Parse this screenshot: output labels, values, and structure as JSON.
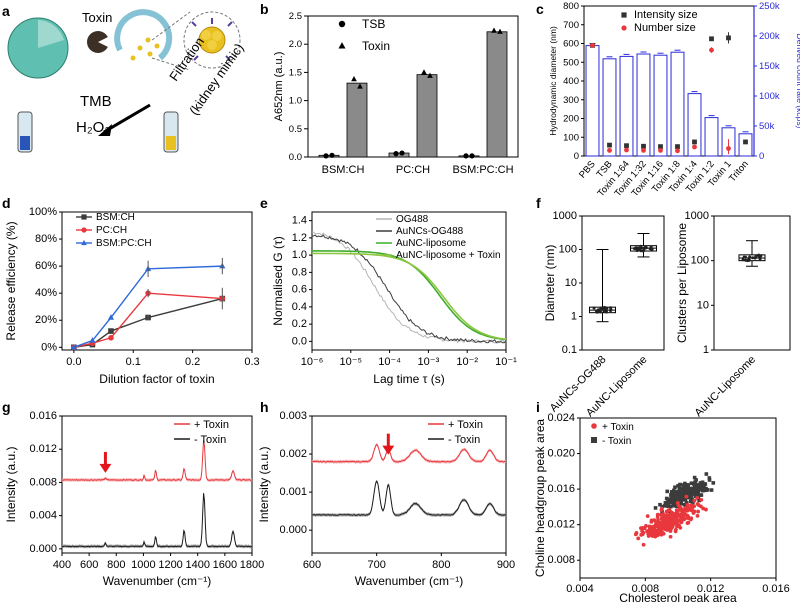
{
  "panels": {
    "a": {
      "letter": "a",
      "toxin_label": "Toxin",
      "filtration_line1": "Filtration",
      "filtration_line2": "(kidney mimic)",
      "tmb_label": "TMB",
      "h2o2_label": "H₂O₂",
      "colors": {
        "liposome": "#5fbfb0",
        "gold": "#e8c020",
        "cup": "#b0d8e8"
      }
    },
    "b": {
      "letter": "b"
    },
    "c": {
      "letter": "c"
    },
    "d": {
      "letter": "d"
    },
    "e": {
      "letter": "e"
    },
    "f": {
      "letter": "f"
    },
    "g": {
      "letter": "g"
    },
    "h": {
      "letter": "h"
    },
    "i": {
      "letter": "i"
    }
  },
  "chart_data": [
    {
      "panel": "b",
      "type": "bar",
      "ylabel": "A652nm (a.u.)",
      "ylim": [
        0,
        2.5
      ],
      "yticks": [
        "0.0",
        "0.5",
        "1.0",
        "1.5",
        "2.0",
        "2.5"
      ],
      "categories": [
        "BSM:CH",
        "PC:CH",
        "BSM:PC:CH"
      ],
      "series": [
        {
          "name": "TSB",
          "marker": "circle",
          "values": [
            0.03,
            0.07,
            0.02
          ],
          "points": [
            [
              0.02,
              0.03
            ],
            [
              0.06,
              0.07
            ],
            [
              0.02,
              0.02
            ]
          ]
        },
        {
          "name": "Toxin",
          "marker": "triangle",
          "values": [
            1.31,
            1.46,
            2.22
          ],
          "points": [
            [
              1.38,
              1.25
            ],
            [
              1.5,
              1.44
            ],
            [
              2.24,
              2.22
            ]
          ]
        }
      ],
      "colors": {
        "bar": "#8a8a8a"
      }
    },
    {
      "panel": "c",
      "type": "bar",
      "ylabel": "Hydrodynamic diameter (nm)",
      "y2label": "Derived count rate (kcps)",
      "ylim": [
        0,
        800
      ],
      "yticks": [
        "0",
        "100",
        "200",
        "300",
        "400",
        "500",
        "600",
        "700",
        "800"
      ],
      "y2lim": [
        0,
        250000
      ],
      "y2ticks": [
        "0",
        "50k",
        "100k",
        "150k",
        "200k",
        "250k"
      ],
      "categories": [
        "PBS",
        "TSB",
        "Toxin 1:64",
        "Toxin 1:32",
        "Toxin 1:16",
        "Toxin 1:8",
        "Toxin 1:4",
        "Toxin 1:2",
        "Toxin 1",
        "Triton"
      ],
      "count_rate": [
        184000,
        162000,
        166000,
        170000,
        168000,
        173000,
        104000,
        64000,
        47000,
        37000
      ],
      "series": [
        {
          "name": "Intensity size",
          "values": [
            590,
            58,
            55,
            52,
            50,
            50,
            75,
            625,
            630,
            75
          ],
          "color": "#333333"
        },
        {
          "name": "Number size",
          "values": [
            590,
            30,
            32,
            30,
            30,
            28,
            48,
            565,
            40,
            0
          ],
          "color": "#e8383d"
        }
      ],
      "colors": {
        "bar": "#2b2bd9"
      }
    },
    {
      "panel": "d",
      "type": "line",
      "xlabel": "Dilution factor of toxin",
      "ylabel": "Release efficiency (%)",
      "xlim": [
        -0.02,
        0.3
      ],
      "ylim": [
        -2,
        100
      ],
      "xticks": [
        "0.0",
        "0.1",
        "0.2",
        "0.3"
      ],
      "yticks": [
        "0%",
        "20%",
        "40%",
        "60%",
        "80%",
        "100%"
      ],
      "x": [
        0,
        0.03125,
        0.0625,
        0.125,
        0.25
      ],
      "series": [
        {
          "name": "BSM:CH",
          "values": [
            0,
            2,
            12,
            22,
            36
          ],
          "marker": "square",
          "color": "#3c3c3c"
        },
        {
          "name": "PC:CH",
          "values": [
            0,
            3,
            7,
            40,
            36
          ],
          "marker": "circle",
          "color": "#e8383d"
        },
        {
          "name": "BSM:PC:CH",
          "values": [
            0,
            5,
            22,
            58,
            60
          ],
          "marker": "triangle",
          "color": "#2e6ad8"
        }
      ]
    },
    {
      "panel": "e",
      "type": "line",
      "xlabel": "Lag time τ (s)",
      "ylabel": "Normalised G (τ)",
      "ylim": [
        -0.1,
        1.5
      ],
      "yticks": [
        "0.0",
        "0.2",
        "0.4",
        "0.6",
        "0.8",
        "1.0",
        "1.2",
        "1.4"
      ],
      "xticks": [
        "10⁻⁶",
        "10⁻⁵",
        "10⁻⁴",
        "10⁻³",
        "10⁻²",
        "10⁻¹"
      ],
      "series": [
        {
          "name": "OG488",
          "color": "#b5b5b5",
          "tau_d": 4e-05,
          "amp": 1.3
        },
        {
          "name": "AuNCs-OG488",
          "color": "#3c3c3c",
          "tau_d": 8e-05,
          "amp": 1.25
        },
        {
          "name": "AuNC-liposome",
          "color": "#3fae2a",
          "tau_d": 0.002,
          "amp": 1.05
        },
        {
          "name": "AuNC-liposome + Toxin",
          "color": "#8cc63f",
          "tau_d": 0.0025,
          "amp": 1.02
        }
      ]
    },
    {
      "panel": "f",
      "type": "box",
      "plots": [
        {
          "ylabel": "Diameter (nm)",
          "yticks": [
            "0.1",
            "1",
            "10",
            "100",
            "1000"
          ],
          "categories": [
            "AuNCs-OG488",
            "AuNC-Liposome"
          ],
          "boxes": [
            {
              "min": 0.7,
              "q1": 1.3,
              "median": 1.55,
              "q3": 1.9,
              "max": 100
            },
            {
              "min": 60,
              "q1": 90,
              "median": 110,
              "q3": 130,
              "max": 300
            }
          ]
        },
        {
          "ylabel": "Clusters per Liposome",
          "yticks": [
            "1",
            "10",
            "100",
            "1000"
          ],
          "categories": [
            "AuNC-Liposome"
          ],
          "boxes": [
            {
              "min": 75,
              "q1": 100,
              "median": 115,
              "q3": 135,
              "max": 280
            }
          ]
        }
      ]
    },
    {
      "panel": "g",
      "type": "line",
      "xlabel": "Wavenumber (cm⁻¹)",
      "ylabel": "Intensity (a.u.)",
      "xlim": [
        400,
        1800
      ],
      "ylim": [
        -0.0005,
        0.016
      ],
      "xticks": [
        "400",
        "600",
        "800",
        "1000",
        "1200",
        "1400",
        "1600",
        "1800"
      ],
      "yticks": [
        "0.000",
        "0.004",
        "0.008",
        "0.012",
        "0.016"
      ],
      "arrow_at": 720,
      "series": [
        {
          "name": "+ Toxin",
          "color": "#e8383d",
          "fill": "#f4aaad",
          "baseline": 0.0083
        },
        {
          "name": "- Toxin",
          "color": "#1a1a1a",
          "fill": "#9a9a9a",
          "baseline": 0.0003
        }
      ]
    },
    {
      "panel": "h",
      "type": "line",
      "xlabel": "Wavenumber (cm⁻¹)",
      "ylabel": "Intensity (a.u.)",
      "xlim": [
        600,
        900
      ],
      "ylim": [
        -0.0006,
        0.003
      ],
      "xticks": [
        "600",
        "700",
        "800",
        "900"
      ],
      "yticks": [
        "0.000",
        "0.001",
        "0.002",
        "0.003"
      ],
      "arrow_at": 718,
      "series": [
        {
          "name": "+ Toxin",
          "color": "#e8383d",
          "fill": "#f4aaad",
          "baseline": 0.0018
        },
        {
          "name": "- Toxin",
          "color": "#1a1a1a",
          "fill": "#9a9a9a",
          "baseline": 0.0004
        }
      ]
    },
    {
      "panel": "i",
      "type": "scatter",
      "xlabel": "Cholesterol peak area",
      "ylabel": "Choline headgroup peak area",
      "xlim": [
        0.004,
        0.016
      ],
      "ylim": [
        0.006,
        0.024
      ],
      "xticks": [
        "0.004",
        "0.008",
        "0.012",
        "0.016"
      ],
      "yticks": [
        "0.008",
        "0.012",
        "0.016",
        "0.020",
        "0.024"
      ],
      "series": [
        {
          "name": "+ Toxin",
          "color": "#e8383d",
          "center": [
            0.0095,
            0.0125
          ],
          "spread": [
            0.0016,
            0.0018
          ],
          "n": 260
        },
        {
          "name": "- Toxin",
          "color": "#3c3c3c",
          "center": [
            0.0105,
            0.0155
          ],
          "spread": [
            0.0013,
            0.0016
          ],
          "n": 220
        }
      ]
    }
  ]
}
